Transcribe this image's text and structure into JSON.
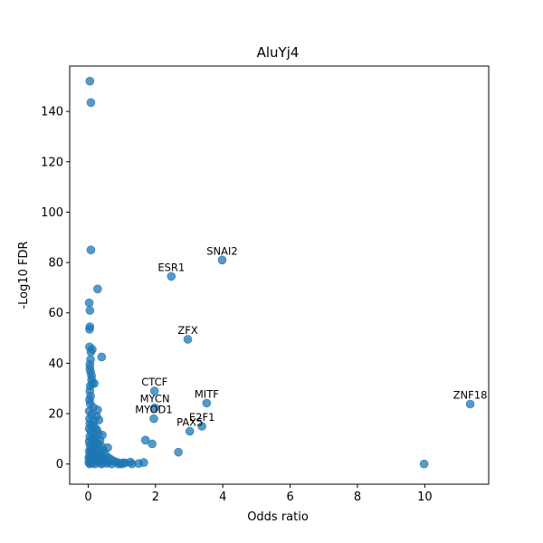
{
  "chart_data": {
    "type": "scatter",
    "title": "AluYj4",
    "xlabel": "Odds ratio",
    "ylabel": "-Log10 FDR",
    "xlim": [
      -0.55,
      11.9
    ],
    "ylim": [
      -8,
      158
    ],
    "xticks": [
      0,
      2,
      4,
      6,
      8,
      10
    ],
    "yticks": [
      0,
      20,
      40,
      60,
      80,
      100,
      120,
      140
    ],
    "xtick_labels": [
      "0",
      "2",
      "4",
      "6",
      "8",
      "10"
    ],
    "ytick_labels": [
      "0",
      "20",
      "40",
      "60",
      "80",
      "100",
      "120",
      "140"
    ],
    "grid": false,
    "marker_color": "#1f77b4",
    "points": [
      {
        "x": 0.05,
        "y": 152
      },
      {
        "x": 0.08,
        "y": 143.5
      },
      {
        "x": 0.08,
        "y": 85
      },
      {
        "x": 0.28,
        "y": 69.5
      },
      {
        "x": 0.03,
        "y": 64
      },
      {
        "x": 0.05,
        "y": 61
      },
      {
        "x": 0.05,
        "y": 54.5
      },
      {
        "x": 0.04,
        "y": 53.5
      },
      {
        "x": 0.04,
        "y": 46.5
      },
      {
        "x": 0.12,
        "y": 45.5
      },
      {
        "x": 0.08,
        "y": 44.5
      },
      {
        "x": 0.4,
        "y": 42.5
      },
      {
        "x": 0.07,
        "y": 41.5
      },
      {
        "x": 0.05,
        "y": 39.5
      },
      {
        "x": 0.05,
        "y": 38
      },
      {
        "x": 0.07,
        "y": 36.5
      },
      {
        "x": 0.1,
        "y": 35
      },
      {
        "x": 0.1,
        "y": 33.5
      },
      {
        "x": 0.12,
        "y": 32
      },
      {
        "x": 0.18,
        "y": 32
      },
      {
        "x": 0.06,
        "y": 31
      },
      {
        "x": 0.05,
        "y": 29
      },
      {
        "x": 0.07,
        "y": 27
      },
      {
        "x": 0.04,
        "y": 25.5
      },
      {
        "x": 0.06,
        "y": 24
      },
      {
        "x": 0.15,
        "y": 22.5
      },
      {
        "x": 0.28,
        "y": 21.5
      },
      {
        "x": 0.03,
        "y": 21
      },
      {
        "x": 0.1,
        "y": 19.5
      },
      {
        "x": 0.25,
        "y": 19
      },
      {
        "x": 0.04,
        "y": 18
      },
      {
        "x": 0.18,
        "y": 17
      },
      {
        "x": 0.32,
        "y": 17.5
      },
      {
        "x": 0.05,
        "y": 16
      },
      {
        "x": 0.12,
        "y": 15.5
      },
      {
        "x": 0.2,
        "y": 14.5
      },
      {
        "x": 0.03,
        "y": 14
      },
      {
        "x": 0.08,
        "y": 13
      },
      {
        "x": 0.26,
        "y": 13.5
      },
      {
        "x": 0.15,
        "y": 12.5
      },
      {
        "x": 0.3,
        "y": 12
      },
      {
        "x": 0.42,
        "y": 11.5
      },
      {
        "x": 0.05,
        "y": 11
      },
      {
        "x": 0.18,
        "y": 10.5
      },
      {
        "x": 0.1,
        "y": 10
      },
      {
        "x": 0.35,
        "y": 9.5
      },
      {
        "x": 0.22,
        "y": 9
      },
      {
        "x": 0.03,
        "y": 9
      },
      {
        "x": 0.12,
        "y": 8.5
      },
      {
        "x": 0.3,
        "y": 8
      },
      {
        "x": 0.05,
        "y": 7.5
      },
      {
        "x": 0.2,
        "y": 7
      },
      {
        "x": 0.4,
        "y": 7
      },
      {
        "x": 0.58,
        "y": 6.5
      },
      {
        "x": 0.08,
        "y": 6
      },
      {
        "x": 0.27,
        "y": 6
      },
      {
        "x": 0.15,
        "y": 5.5
      },
      {
        "x": 0.45,
        "y": 5.5
      },
      {
        "x": 0.03,
        "y": 5
      },
      {
        "x": 0.35,
        "y": 4.5
      },
      {
        "x": 0.1,
        "y": 4.5
      },
      {
        "x": 0.22,
        "y": 4
      },
      {
        "x": 0.5,
        "y": 4
      },
      {
        "x": 0.05,
        "y": 3.5
      },
      {
        "x": 0.3,
        "y": 3.5
      },
      {
        "x": 0.15,
        "y": 3
      },
      {
        "x": 0.42,
        "y": 3
      },
      {
        "x": 0.02,
        "y": 2.5
      },
      {
        "x": 0.24,
        "y": 2.5
      },
      {
        "x": 0.6,
        "y": 2.5
      },
      {
        "x": 0.1,
        "y": 2
      },
      {
        "x": 0.36,
        "y": 2
      },
      {
        "x": 0.52,
        "y": 1.8
      },
      {
        "x": 0.68,
        "y": 1.8
      },
      {
        "x": 0.04,
        "y": 1.5
      },
      {
        "x": 0.18,
        "y": 1.5
      },
      {
        "x": 0.46,
        "y": 1.2
      },
      {
        "x": 0.75,
        "y": 1.2
      },
      {
        "x": 0.08,
        "y": 1
      },
      {
        "x": 0.28,
        "y": 1
      },
      {
        "x": 0.6,
        "y": 0.8
      },
      {
        "x": 0.85,
        "y": 0.8
      },
      {
        "x": 0.02,
        "y": 0.5
      },
      {
        "x": 0.14,
        "y": 0.5
      },
      {
        "x": 0.36,
        "y": 0.5
      },
      {
        "x": 0.55,
        "y": 0.3
      },
      {
        "x": 0.95,
        "y": 0.3
      },
      {
        "x": 1.1,
        "y": 0.4
      },
      {
        "x": 1.25,
        "y": 0.8
      },
      {
        "x": 0.05,
        "y": 0
      },
      {
        "x": 0.2,
        "y": 0
      },
      {
        "x": 0.4,
        "y": 0
      },
      {
        "x": 0.7,
        "y": 0
      },
      {
        "x": 0.9,
        "y": 0
      },
      {
        "x": 1.0,
        "y": 0
      },
      {
        "x": 1.05,
        "y": 0.5
      },
      {
        "x": 1.3,
        "y": 0
      },
      {
        "x": 1.5,
        "y": 0.2
      },
      {
        "x": 1.65,
        "y": 0.6
      },
      {
        "x": 1.7,
        "y": 9.5
      },
      {
        "x": 1.9,
        "y": 8
      },
      {
        "x": 1.95,
        "y": 18
      },
      {
        "x": 2.68,
        "y": 4.7
      },
      {
        "x": 3.02,
        "y": 13
      },
      {
        "x": 3.38,
        "y": 15
      },
      {
        "x": 1.97,
        "y": 29
      },
      {
        "x": 1.98,
        "y": 22.3
      },
      {
        "x": 3.52,
        "y": 24.2
      },
      {
        "x": 2.96,
        "y": 49.5
      },
      {
        "x": 2.47,
        "y": 74.5
      },
      {
        "x": 3.98,
        "y": 81
      },
      {
        "x": 11.35,
        "y": 23.8
      },
      {
        "x": 9.98,
        "y": 0
      }
    ],
    "annotations": [
      {
        "text": "SNAI2",
        "x": 3.98,
        "y": 81
      },
      {
        "text": "ESR1",
        "x": 2.47,
        "y": 74.5
      },
      {
        "text": "ZFX",
        "x": 2.96,
        "y": 49.5
      },
      {
        "text": "CTCF",
        "x": 1.97,
        "y": 29
      },
      {
        "text": "MYCN",
        "x": 1.98,
        "y": 22.3
      },
      {
        "text": "MITF",
        "x": 3.52,
        "y": 24.2
      },
      {
        "text": "MYOD1",
        "x": 1.95,
        "y": 18
      },
      {
        "text": "E2F1",
        "x": 3.38,
        "y": 15
      },
      {
        "text": "PAX5",
        "x": 3.02,
        "y": 13
      },
      {
        "text": "ZNF18",
        "x": 11.35,
        "y": 23.8
      }
    ]
  }
}
